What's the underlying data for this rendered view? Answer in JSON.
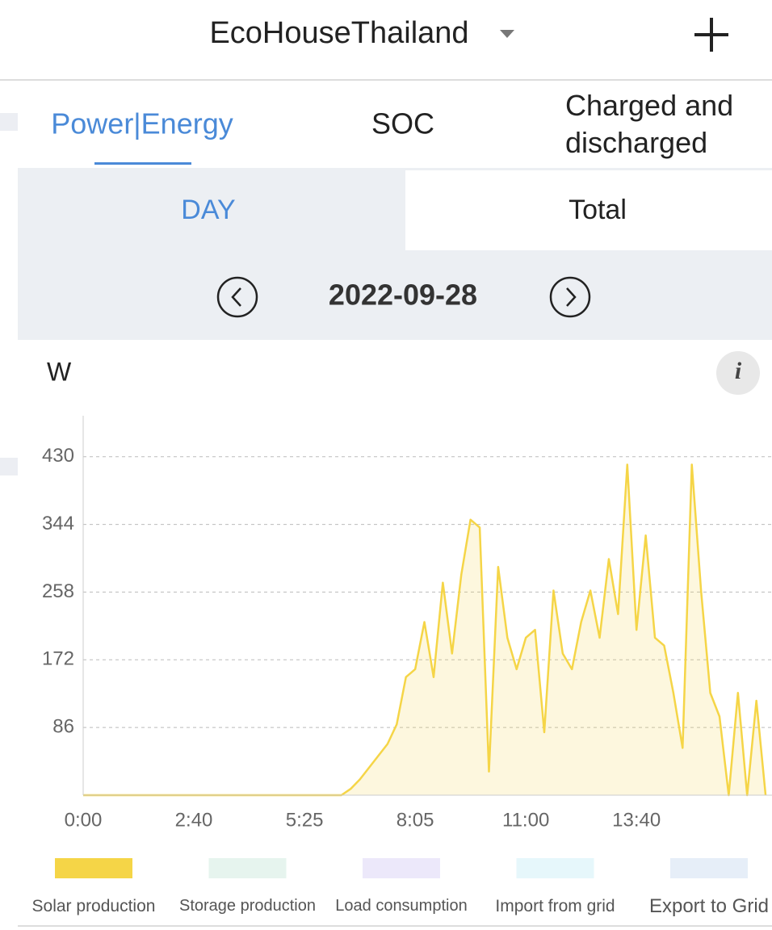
{
  "header": {
    "title": "EcoHouseThailand"
  },
  "tabs": [
    "Power|Energy",
    "SOC",
    "Charged and discharged"
  ],
  "period_tabs": [
    "DAY",
    "Total"
  ],
  "date": "2022-09-28",
  "chart_data": {
    "type": "line",
    "y_label": "W",
    "categories": [
      "0:00",
      null,
      null,
      null,
      null,
      null,
      null,
      null,
      null,
      null,
      null,
      null,
      "2:40",
      null,
      null,
      null,
      null,
      null,
      null,
      null,
      null,
      null,
      null,
      null,
      "5:25",
      null,
      null,
      null,
      null,
      null,
      null,
      null,
      null,
      null,
      null,
      null,
      "8:05",
      null,
      null,
      null,
      null,
      null,
      null,
      null,
      null,
      null,
      null,
      null,
      "11:00",
      null,
      null,
      null,
      null,
      null,
      null,
      null,
      null,
      null,
      null,
      null,
      "13:40",
      null,
      null,
      null,
      null,
      null,
      null,
      null,
      null,
      null,
      null,
      null,
      null,
      null,
      null
    ],
    "series": [
      {
        "name": "Solar production",
        "color": "#f5d547",
        "values": [
          0,
          0,
          0,
          0,
          0,
          0,
          0,
          0,
          0,
          0,
          0,
          0,
          0,
          0,
          0,
          0,
          0,
          0,
          0,
          0,
          0,
          0,
          0,
          0,
          0,
          0,
          0,
          0,
          0,
          8,
          20,
          35,
          50,
          65,
          90,
          150,
          160,
          220,
          150,
          270,
          180,
          280,
          350,
          340,
          30,
          290,
          200,
          160,
          200,
          210,
          80,
          260,
          180,
          160,
          220,
          260,
          200,
          300,
          230,
          420,
          210,
          330,
          200,
          190,
          130,
          60,
          420,
          260,
          130,
          100,
          0,
          130,
          0,
          120,
          0
        ]
      }
    ],
    "legend": [
      {
        "name": "Solar production",
        "color": "#f5d547"
      },
      {
        "name": "Storage production",
        "color": "#e6f4ee"
      },
      {
        "name": "Load consumption",
        "color": "#ece8fa"
      },
      {
        "name": "Import from grid",
        "color": "#e6f7fb"
      },
      {
        "name": "Export to Grid",
        "color": "#e6eef8"
      }
    ],
    "ylim": [
      0,
      482
    ],
    "yticks": [
      86,
      172,
      258,
      344,
      430
    ],
    "grid": true
  }
}
